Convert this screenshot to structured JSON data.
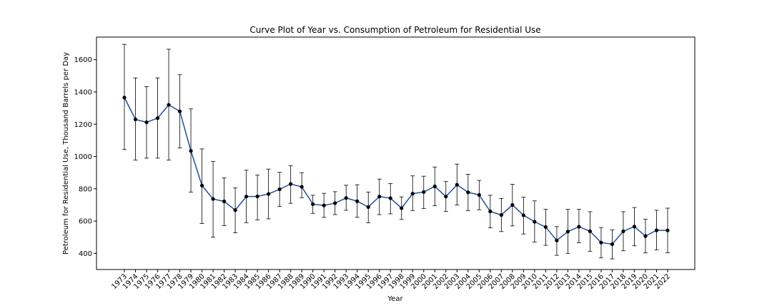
{
  "chart_data": {
    "type": "line",
    "title": "Curve Plot of Year vs. Consumption of Petroleum for Residential Use",
    "xlabel": "Year",
    "ylabel": "Petroleum for Residential Use, Thousand Barrels per Day",
    "ylim": [
      300,
      1740
    ],
    "yticks": [
      400,
      600,
      800,
      1000,
      1200,
      1400,
      1600
    ],
    "grid": false,
    "line_color": "#1f4e9c",
    "marker_color": "#000000",
    "errorbar_color": "#000000",
    "categories": [
      "1973",
      "1974",
      "1975",
      "1976",
      "1977",
      "1978",
      "1979",
      "1980",
      "1981",
      "1982",
      "1983",
      "1984",
      "1985",
      "1986",
      "1987",
      "1988",
      "1989",
      "1990",
      "1991",
      "1992",
      "1993",
      "1994",
      "1995",
      "1996",
      "1997",
      "1998",
      "1999",
      "2000",
      "2001",
      "2002",
      "2003",
      "2004",
      "2005",
      "2006",
      "2007",
      "2008",
      "2009",
      "2010",
      "2011",
      "2012",
      "2013",
      "2014",
      "2015",
      "2016",
      "2017",
      "2018",
      "2019",
      "2020",
      "2021",
      "2022"
    ],
    "series": [
      {
        "values": [
          1365,
          1230,
          1212,
          1238,
          1320,
          1280,
          1035,
          820,
          737,
          722,
          668,
          752,
          753,
          768,
          797,
          830,
          812,
          705,
          697,
          711,
          743,
          723,
          687,
          752,
          742,
          680,
          770,
          780,
          815,
          752,
          825,
          778,
          762,
          660,
          638,
          700,
          636,
          596,
          563,
          480,
          535,
          565,
          537,
          467,
          457,
          537,
          566,
          507,
          543,
          542
        ],
        "err_low": [
          1043,
          978,
          990,
          990,
          978,
          1053,
          780,
          585,
          500,
          572,
          527,
          590,
          607,
          614,
          690,
          710,
          745,
          648,
          623,
          640,
          667,
          623,
          590,
          640,
          645,
          610,
          665,
          678,
          695,
          660,
          700,
          665,
          670,
          558,
          535,
          570,
          520,
          470,
          450,
          388,
          400,
          466,
          413,
          372,
          366,
          416,
          447,
          403,
          422,
          404
        ],
        "err_high": [
          1695,
          1487,
          1433,
          1487,
          1665,
          1507,
          1295,
          1047,
          970,
          868,
          805,
          915,
          885,
          922,
          902,
          943,
          900,
          760,
          772,
          782,
          822,
          825,
          780,
          860,
          832,
          750,
          880,
          878,
          935,
          845,
          953,
          890,
          852,
          760,
          740,
          828,
          748,
          725,
          673,
          566,
          673,
          673,
          658,
          560,
          546,
          658,
          684,
          611,
          667,
          680
        ]
      }
    ]
  }
}
